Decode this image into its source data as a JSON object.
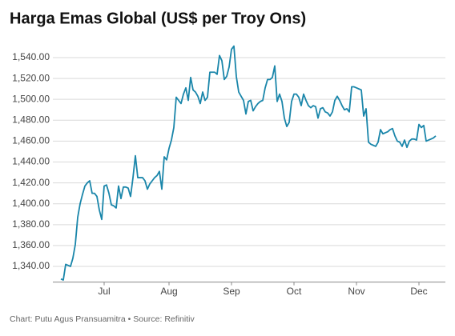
{
  "chart_data": {
    "type": "line",
    "title": "Harga Emas Global (US$ per Troy Ons)",
    "source": "Chart: Putu Agus Pransuamitra • Source: Refinitiv",
    "categories": [
      null,
      null,
      null,
      null,
      null,
      null,
      null,
      null,
      null,
      null,
      null,
      null,
      null,
      null,
      null,
      null,
      null,
      null,
      "Jul",
      null,
      null,
      null,
      null,
      null,
      null,
      null,
      null,
      null,
      null,
      null,
      null,
      null,
      null,
      null,
      null,
      null,
      null,
      null,
      null,
      null,
      null,
      null,
      null,
      null,
      null,
      "Aug",
      null,
      null,
      null,
      null,
      null,
      null,
      null,
      null,
      null,
      null,
      null,
      null,
      null,
      null,
      null,
      null,
      null,
      null,
      null,
      null,
      null,
      null,
      null,
      null,
      null,
      "Sep",
      null,
      null,
      null,
      null,
      null,
      null,
      null,
      null,
      null,
      null,
      null,
      null,
      null,
      null,
      null,
      null,
      null,
      null,
      null,
      null,
      null,
      null,
      null,
      null,
      null,
      "Oct",
      null,
      null,
      null,
      null,
      null,
      null,
      null,
      null,
      null,
      null,
      null,
      null,
      null,
      null,
      null,
      null,
      null,
      null,
      null,
      null,
      null,
      null,
      null,
      null,
      null,
      "Nov",
      null,
      null,
      null,
      null,
      null,
      null,
      null,
      null,
      null,
      null,
      null,
      null,
      null,
      null,
      null,
      null,
      null,
      null,
      null,
      null,
      null,
      null,
      null,
      null,
      null,
      "Dec",
      null,
      null,
      null,
      null,
      null,
      null,
      null
    ],
    "series": [
      {
        "name": "Harga Emas",
        "color": "#1a86aa",
        "values": [
          1328,
          1327,
          1342,
          1341,
          1340,
          1348,
          1361,
          1387,
          1400,
          1409,
          1417,
          1420,
          1422,
          1410,
          1410,
          1407,
          1394,
          1385,
          1417,
          1418,
          1410,
          1399,
          1398,
          1396,
          1417,
          1405,
          1416,
          1416,
          1415,
          1407,
          1425,
          1446,
          1425,
          1425,
          1425,
          1422,
          1414,
          1419,
          1422,
          1425,
          1427,
          1431,
          1414,
          1445,
          1442,
          1453,
          1461,
          1473,
          1502,
          1499,
          1496,
          1505,
          1511,
          1499,
          1521,
          1509,
          1507,
          1503,
          1496,
          1507,
          1499,
          1502,
          1526,
          1526,
          1526,
          1524,
          1542,
          1537,
          1519,
          1522,
          1531,
          1548,
          1551,
          1522,
          1507,
          1503,
          1499,
          1486,
          1498,
          1499,
          1489,
          1493,
          1496,
          1498,
          1499,
          1511,
          1519,
          1519,
          1521,
          1532,
          1498,
          1505,
          1498,
          1482,
          1474,
          1478,
          1498,
          1505,
          1505,
          1502,
          1494,
          1505,
          1499,
          1494,
          1492,
          1494,
          1493,
          1482,
          1491,
          1492,
          1488,
          1487,
          1484,
          1488,
          1499,
          1503,
          1499,
          1494,
          1490,
          1491,
          1488,
          1512,
          1512,
          1511,
          1510,
          1509,
          1484,
          1491,
          1459,
          1457,
          1456,
          1455,
          1459,
          1471,
          1467,
          1468,
          1469,
          1471,
          1472,
          1465,
          1460,
          1459,
          1455,
          1461,
          1454,
          1460,
          1462,
          1462,
          1461,
          1476,
          1473,
          1475,
          1460,
          1461,
          1462,
          1463,
          1465
        ]
      }
    ],
    "ylim": [
      1325,
      1555
    ],
    "yticks": [
      {
        "value": 1340,
        "label": "1,340.00"
      },
      {
        "value": 1360,
        "label": "1,360.00"
      },
      {
        "value": 1380,
        "label": "1,380.00"
      },
      {
        "value": 1400,
        "label": "1,400.00"
      },
      {
        "value": 1420,
        "label": "1,420.00"
      },
      {
        "value": 1440,
        "label": "1,440.00"
      },
      {
        "value": 1460,
        "label": "1,460.00"
      },
      {
        "value": 1480,
        "label": "1,480.00"
      },
      {
        "value": 1500,
        "label": "1,500.00"
      },
      {
        "value": 1520,
        "label": "1,520.00"
      },
      {
        "value": 1540,
        "label": "1,540.00"
      }
    ],
    "grid": true
  }
}
